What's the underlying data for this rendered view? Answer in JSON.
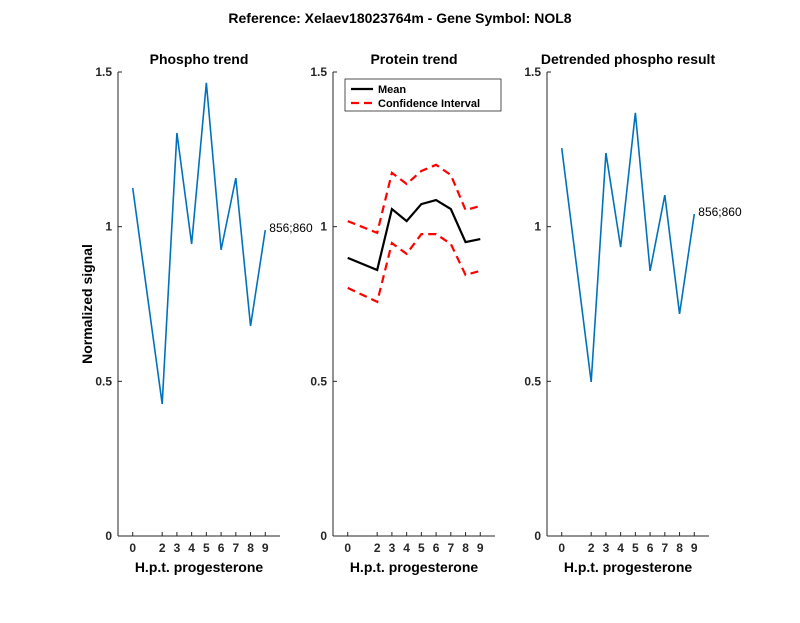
{
  "chart_data": {
    "type": "line",
    "suptitle": "Reference:  Xelaev18023764m - Gene Symbol:  NOL8",
    "ylabel": "Normalized signal",
    "panels": [
      {
        "title": "Phospho trend",
        "xlabel": "H.p.t. progesterone",
        "x": [
          0,
          2,
          3,
          4,
          5,
          6,
          7,
          8,
          9
        ],
        "xtick_labels": [
          "0",
          "2",
          "3",
          "4",
          "5",
          "6",
          "7",
          "8",
          "9"
        ],
        "ylim": [
          0,
          1.5
        ],
        "yticks": [
          0,
          0.5,
          1,
          1.5
        ],
        "ytick_labels": [
          "0",
          "0.5",
          "1",
          "1.5"
        ],
        "series": [
          {
            "name": "856;860",
            "color": "#0072BD",
            "style": "solid",
            "values": [
              1.125,
              0.427,
              1.303,
              0.944,
              1.465,
              0.925,
              1.157,
              0.679,
              0.989
            ]
          }
        ],
        "annotation": "856;860"
      },
      {
        "title": "Protein trend",
        "xlabel": "H.p.t. progesterone",
        "x": [
          0,
          2,
          3,
          4,
          5,
          6,
          7,
          8,
          9
        ],
        "xtick_labels": [
          "0",
          "2",
          "3",
          "4",
          "5",
          "6",
          "7",
          "8",
          "9"
        ],
        "ylim": [
          0,
          1.5
        ],
        "yticks": [
          0,
          0.5,
          1,
          1.5
        ],
        "ytick_labels": [
          "0",
          "0.5",
          "1",
          "1.5"
        ],
        "legend": {
          "placement": "top-left",
          "entries": [
            "Mean",
            "Confidence Interval"
          ]
        },
        "series": [
          {
            "name": "Mean",
            "color": "#000000",
            "style": "solid",
            "values": [
              0.899,
              0.86,
              1.057,
              1.018,
              1.073,
              1.086,
              1.057,
              0.95,
              0.96
            ]
          },
          {
            "name": "Confidence Interval upper",
            "color": "#FF0000",
            "style": "dashed",
            "values": [
              1.018,
              0.98,
              1.174,
              1.138,
              1.18,
              1.2,
              1.167,
              1.054,
              1.067
            ]
          },
          {
            "name": "Confidence Interval lower",
            "color": "#FF0000",
            "style": "dashed",
            "values": [
              0.802,
              0.757,
              0.947,
              0.912,
              0.976,
              0.976,
              0.944,
              0.844,
              0.857
            ]
          }
        ]
      },
      {
        "title": "Detrended phospho result",
        "xlabel": "H.p.t. progesterone",
        "x": [
          0,
          2,
          3,
          4,
          5,
          6,
          7,
          8,
          9
        ],
        "xtick_labels": [
          "0",
          "2",
          "3",
          "4",
          "5",
          "6",
          "7",
          "8",
          "9"
        ],
        "ylim": [
          0,
          1.5
        ],
        "yticks": [
          0,
          0.5,
          1,
          1.5
        ],
        "ytick_labels": [
          "0",
          "0.5",
          "1",
          "1.5"
        ],
        "series": [
          {
            "name": "856;860",
            "color": "#0072BD",
            "style": "solid",
            "values": [
              1.254,
              0.498,
              1.238,
              0.934,
              1.368,
              0.857,
              1.102,
              0.718,
              1.041
            ]
          }
        ],
        "annotation": "856;860"
      }
    ]
  }
}
